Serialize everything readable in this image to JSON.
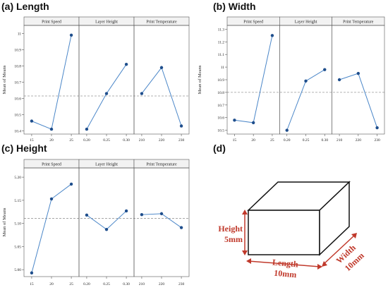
{
  "panels": {
    "a": {
      "title": "(a) Length"
    },
    "b": {
      "title": "(b) Width"
    },
    "c": {
      "title": "(c) Height"
    },
    "d": {
      "title": "(d)"
    }
  },
  "chart_data": [
    {
      "id": "length",
      "type": "line",
      "title": "(a) Length",
      "ylabel": "Mean of Means",
      "ylim": [
        10.38,
        11.05
      ],
      "yticks": [
        10.4,
        10.5,
        10.6,
        10.7,
        10.8,
        10.9,
        11.0
      ],
      "mean_line": 10.615,
      "facets": [
        {
          "name": "Print Speed",
          "x": [
            "15",
            "20",
            "25"
          ],
          "values": [
            10.46,
            10.41,
            10.99
          ]
        },
        {
          "name": "Layer Height",
          "x": [
            "0.20",
            "0.25",
            "0.30"
          ],
          "values": [
            10.41,
            10.63,
            10.81
          ]
        },
        {
          "name": "Print Temperature",
          "x": [
            "210",
            "220",
            "230"
          ],
          "values": [
            10.63,
            10.79,
            10.43
          ]
        }
      ]
    },
    {
      "id": "width",
      "type": "line",
      "title": "(b) Width",
      "ylabel": "Mean of Means",
      "ylim": [
        10.47,
        11.33
      ],
      "yticks": [
        10.5,
        10.6,
        10.7,
        10.8,
        10.9,
        11.0,
        11.1,
        11.2,
        11.3
      ],
      "mean_line": 10.8,
      "facets": [
        {
          "name": "Print Speed",
          "x": [
            "15",
            "20",
            "25"
          ],
          "values": [
            10.58,
            10.56,
            11.25
          ]
        },
        {
          "name": "Layer Height",
          "x": [
            "0.20",
            "0.25",
            "0.30"
          ],
          "values": [
            10.5,
            10.89,
            10.98
          ]
        },
        {
          "name": "Print Temperature",
          "x": [
            "210",
            "220",
            "230"
          ],
          "values": [
            10.9,
            10.95,
            10.52
          ]
        }
      ]
    },
    {
      "id": "height",
      "type": "line",
      "title": "(c) Height",
      "ylabel": "Mean of Means",
      "ylim": [
        4.985,
        5.22
      ],
      "yticks": [
        5.0,
        5.05,
        5.1,
        5.15,
        5.2
      ],
      "ytick_labels": [
        "5.00",
        "5.05",
        "5.10",
        "5.15",
        "5.20"
      ],
      "mean_line": 5.111,
      "facets": [
        {
          "name": "Print Speed",
          "x": [
            "15",
            "20",
            "25"
          ],
          "values": [
            4.993,
            5.153,
            5.185
          ]
        },
        {
          "name": "Layer Height",
          "x": [
            "0.20",
            "0.25",
            "0.30"
          ],
          "values": [
            5.118,
            5.087,
            5.127
          ]
        },
        {
          "name": "Print Temperature",
          "x": [
            "210",
            "220",
            "230"
          ],
          "values": [
            5.119,
            5.121,
            5.091
          ]
        }
      ]
    }
  ],
  "box_diagram": {
    "height_label": "Height",
    "height_value": "5mm",
    "length_label": "Length",
    "length_value": "10mm",
    "width_label": "Width",
    "width_value": "10mm",
    "accent_color": "#c0392b"
  },
  "colors": {
    "line": "#4a86c8",
    "marker": "#1f4e8c",
    "mean_line": "#999999",
    "frame": "#555555",
    "header_bg": "#f2f2f2"
  }
}
